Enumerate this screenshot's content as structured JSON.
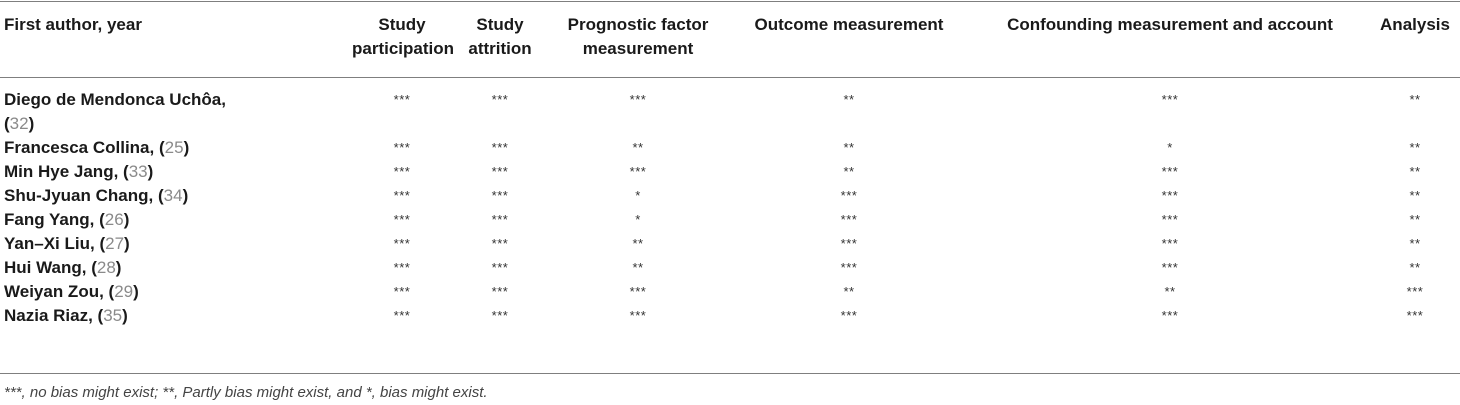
{
  "table": {
    "headers": [
      "First author, year",
      "Study participation",
      "Study attrition",
      "Prognostic factor measurement",
      "Outcome measurement",
      "Confounding measurement and account",
      "Analysis"
    ],
    "rows": [
      {
        "author": "Diego de Mendonca Uchôa,",
        "ref": "32",
        "ratings": [
          "***",
          "***",
          "***",
          "**",
          "***",
          "**"
        ]
      },
      {
        "author": "Francesca Collina,",
        "ref": "25",
        "ratings": [
          "***",
          "***",
          "**",
          "**",
          "*",
          "**"
        ]
      },
      {
        "author": "Min Hye Jang,",
        "ref": "33",
        "ratings": [
          "***",
          "***",
          "***",
          "**",
          "***",
          "**"
        ]
      },
      {
        "author": "Shu-Jyuan Chang,",
        "ref": "34",
        "ratings": [
          "***",
          "***",
          "*",
          "***",
          "***",
          "**"
        ]
      },
      {
        "author": "Fang Yang,",
        "ref": "26",
        "ratings": [
          "***",
          "***",
          "*",
          "***",
          "***",
          "**"
        ]
      },
      {
        "author": "Yan–Xi Liu,",
        "ref": "27",
        "ratings": [
          "***",
          "***",
          "**",
          "***",
          "***",
          "**"
        ]
      },
      {
        "author": "Hui Wang,",
        "ref": "28",
        "ratings": [
          "***",
          "***",
          "**",
          "***",
          "***",
          "**"
        ]
      },
      {
        "author": "Weiyan Zou,",
        "ref": "29",
        "ratings": [
          "***",
          "***",
          "***",
          "**",
          "**",
          "***"
        ]
      },
      {
        "author": "Nazia Riaz,",
        "ref": "35",
        "ratings": [
          "***",
          "***",
          "***",
          "***",
          "***",
          "***"
        ]
      }
    ]
  },
  "footnote": "***, no bias might exist; **, Partly bias might exist, and *, bias might exist."
}
